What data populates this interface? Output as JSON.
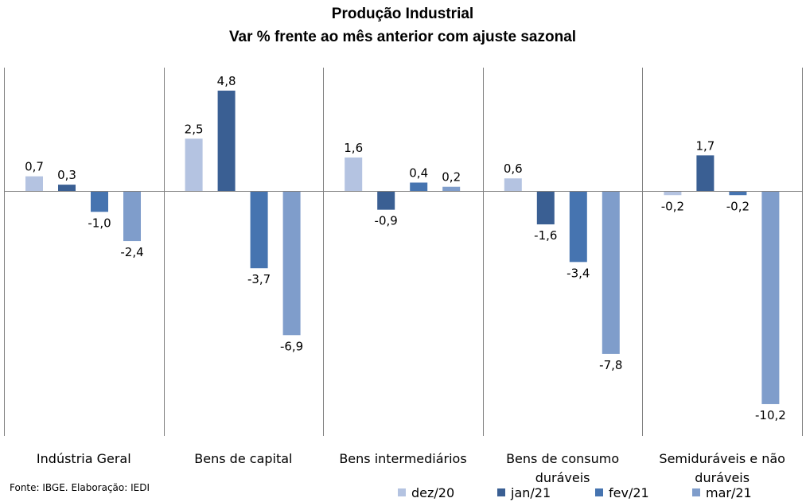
{
  "chart_data": {
    "type": "bar",
    "title": "Produção Industrial",
    "subtitle": "Var % frente ao mês anterior com ajuste sazonal",
    "categories": [
      [
        "Indústria Geral"
      ],
      [
        "Bens de capital"
      ],
      [
        "Bens intermediários"
      ],
      [
        "Bens de consumo",
        "duráveis"
      ],
      [
        "Semiduráveis e não",
        "duráveis"
      ]
    ],
    "series": [
      {
        "name": "dez/20",
        "color": "#b4c3e1",
        "values": [
          0.7,
          2.5,
          1.6,
          0.6,
          -0.2
        ],
        "labels": [
          "0,7",
          "2,5",
          "1,6",
          "0,6",
          "-0,2"
        ]
      },
      {
        "name": "jan/21",
        "color": "#3a5f93",
        "values": [
          0.3,
          4.8,
          -0.9,
          -1.6,
          1.7
        ],
        "labels": [
          "0,3",
          "4,8",
          "-0,9",
          "-1,6",
          "1,7"
        ]
      },
      {
        "name": "fev/21",
        "color": "#4674b0",
        "values": [
          -1.0,
          -3.7,
          0.4,
          -3.4,
          -0.2
        ],
        "labels": [
          "-1,0",
          "-3,7",
          "0,4",
          "-3,4",
          "-0,2"
        ]
      },
      {
        "name": "mar/21",
        "color": "#7f9dcb",
        "values": [
          -2.4,
          -6.9,
          0.2,
          -7.8,
          -10.2
        ],
        "labels": [
          "-2,4",
          "-6,9",
          "0,2",
          "-7,8",
          "-10,2"
        ]
      }
    ],
    "ylim": [
      -11.5,
      5.9
    ],
    "grid": false,
    "legend": "bottom-right"
  },
  "source": "Fonte: IBGE. Elaboração: IEDI"
}
